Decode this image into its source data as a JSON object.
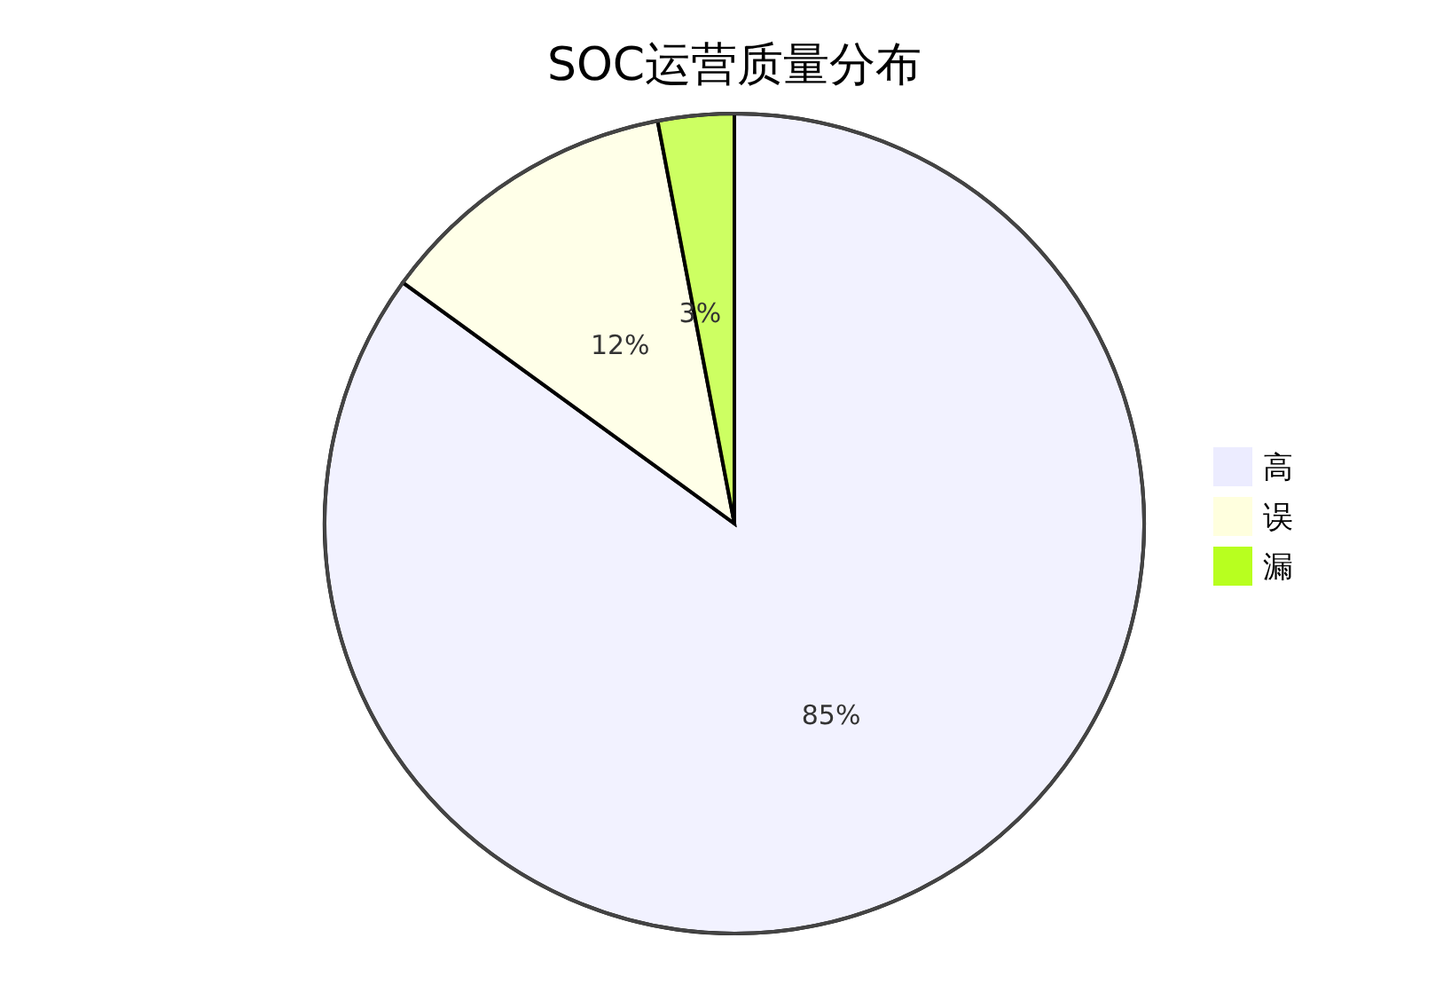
{
  "chart_data": {
    "type": "pie",
    "title": "SOC运营质量分布",
    "categories": [
      "高",
      "误",
      "漏"
    ],
    "values": [
      85,
      12,
      3
    ],
    "colors": [
      "#ececff",
      "#ffffde",
      "#b8ff1f"
    ],
    "value_labels": [
      "85%",
      "12%",
      "3%"
    ],
    "legend": "right"
  }
}
